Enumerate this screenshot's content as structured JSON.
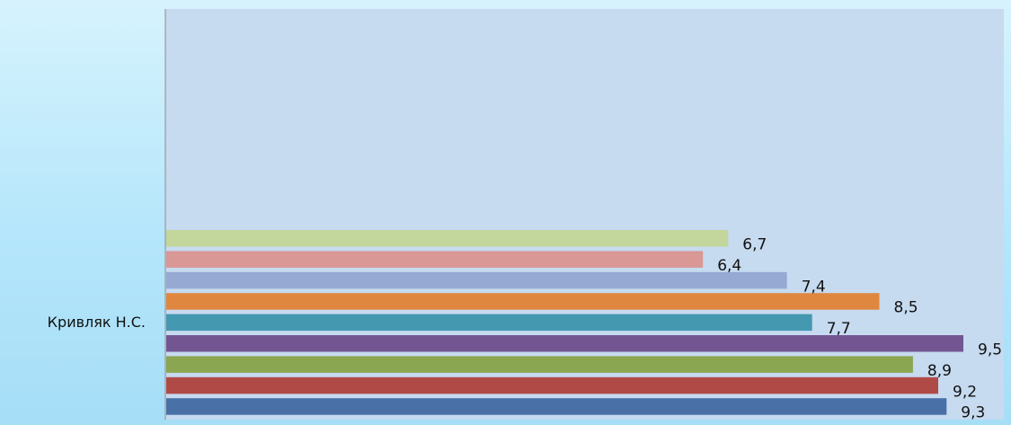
{
  "chart_data": {
    "type": "bar",
    "orientation": "horizontal",
    "categories": [
      "Кривляк Н.С."
    ],
    "series": [
      {
        "values": [
          6.7
        ],
        "label": "6,7",
        "color": "#c3d69b"
      },
      {
        "values": [
          6.4
        ],
        "label": "6,4",
        "color": "#d99795"
      },
      {
        "values": [
          7.4
        ],
        "label": "7,4",
        "color": "#95a9d3"
      },
      {
        "values": [
          8.5
        ],
        "label": "8,5",
        "color": "#e0873f"
      },
      {
        "values": [
          7.7
        ],
        "label": "7,7",
        "color": "#4498b0"
      },
      {
        "values": [
          9.5
        ],
        "label": "9,5",
        "color": "#735691"
      },
      {
        "values": [
          8.9
        ],
        "label": "8,9",
        "color": "#8aa650"
      },
      {
        "values": [
          9.2
        ],
        "label": "9,2",
        "color": "#b04a47"
      },
      {
        "values": [
          9.3
        ],
        "label": "9,3",
        "color": "#4a70a8"
      }
    ],
    "xlim": [
      0,
      9.5
    ],
    "grid": false,
    "plot_background": "#c6daf0",
    "axis_color": "#8c8c8c"
  }
}
